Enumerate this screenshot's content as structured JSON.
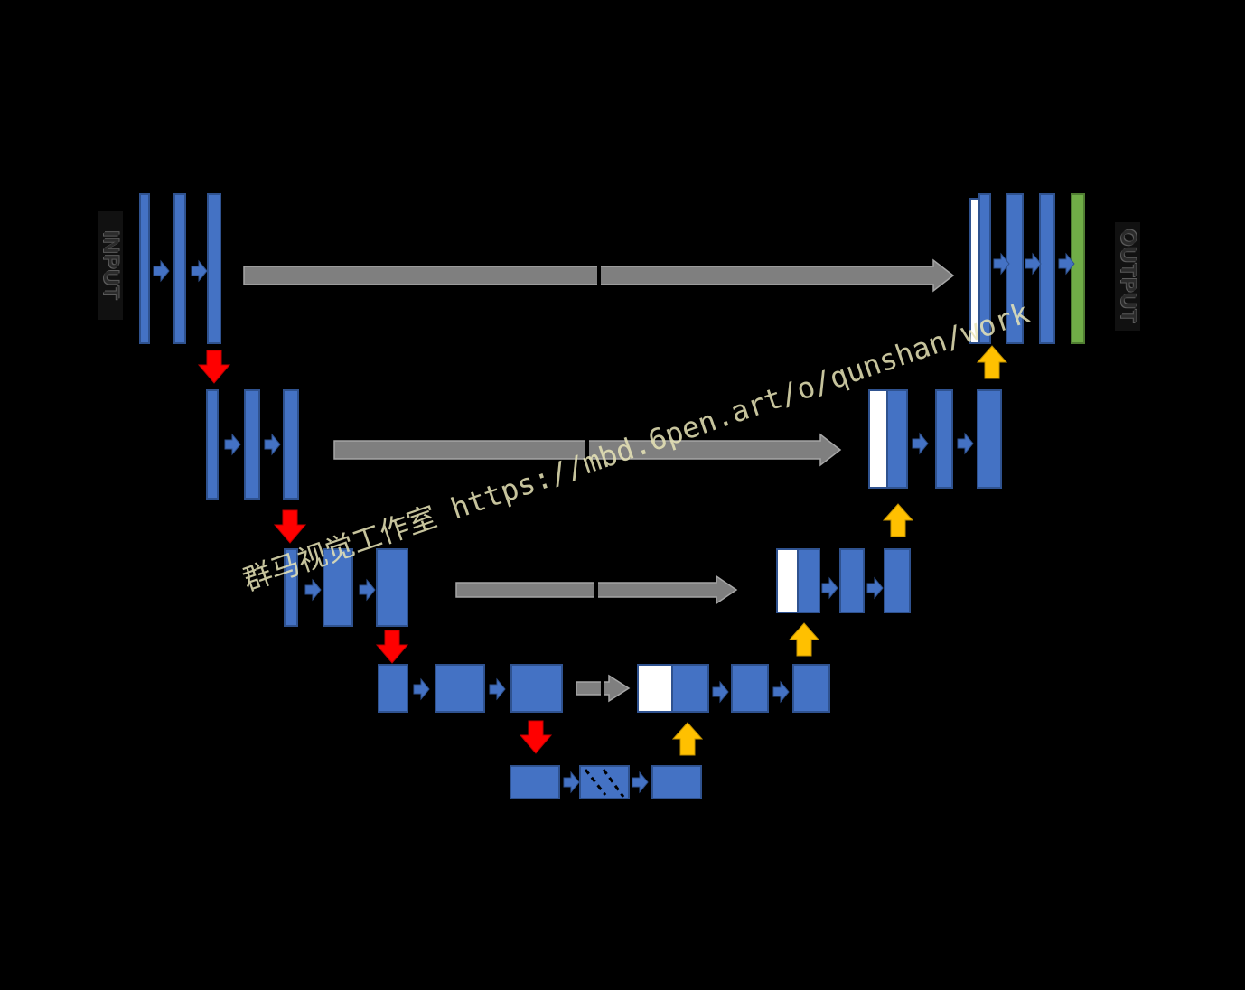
{
  "labels": {
    "input": "INPUT",
    "output": "OUTPUT"
  },
  "watermark": "群马视觉工作室 https://mbd.6pen.art/o/qunshan/work",
  "colors": {
    "background": "#000000",
    "feature_map": "#4472c4",
    "feature_map_border": "#2f528f",
    "copied_map": "#ffffff",
    "output_map": "#70ad47",
    "skip_arrow": "#7f7f7f",
    "downsample_arrow": "#ff0000",
    "upsample_arrow": "#ffc000",
    "conv_arrow": "#4472c4"
  },
  "icons": {
    "conv": "right-arrow-icon",
    "skip": "skip-connection-arrow-icon",
    "down": "down-arrow-icon",
    "up": "up-arrow-icon"
  }
}
